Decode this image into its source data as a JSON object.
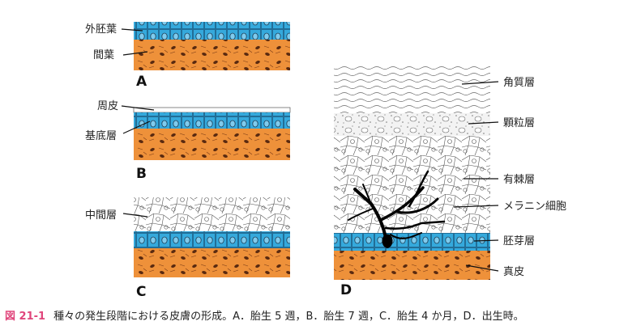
{
  "panels": {
    "A": {
      "letter": "A",
      "labels": {
        "ectoderm": "外胚葉",
        "mesenchyme": "間葉"
      }
    },
    "B": {
      "letter": "B",
      "labels": {
        "periderm": "周皮",
        "basal_layer": "基底層"
      }
    },
    "C": {
      "letter": "C",
      "labels": {
        "intermediate_layer": "中間層"
      }
    },
    "D": {
      "letter": "D",
      "labels": {
        "stratum_corneum": "角質層",
        "stratum_granulosum": "顆粒層",
        "stratum_spinosum": "有棘層",
        "melanocyte": "メラニン細胞",
        "germinative_layer": "胚芽層",
        "dermis": "真皮"
      }
    }
  },
  "caption": {
    "figure_number": "図 21-1",
    "text": "種々の発生段階における皮膚の形成。A．胎生 5 週，B．胎生 7 週，C．胎生 4 か月，D．出生時。"
  },
  "colors": {
    "blue": "#35a9dc",
    "orange": "#ee913a",
    "caption_accent": "#e0457b"
  }
}
